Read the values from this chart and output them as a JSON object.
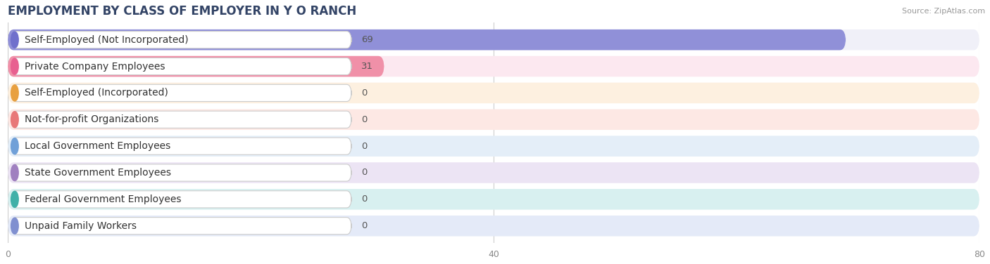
{
  "title": "EMPLOYMENT BY CLASS OF EMPLOYER IN Y O RANCH",
  "source": "Source: ZipAtlas.com",
  "categories": [
    "Self-Employed (Not Incorporated)",
    "Private Company Employees",
    "Self-Employed (Incorporated)",
    "Not-for-profit Organizations",
    "Local Government Employees",
    "State Government Employees",
    "Federal Government Employees",
    "Unpaid Family Workers"
  ],
  "values": [
    69,
    31,
    0,
    0,
    0,
    0,
    0,
    0
  ],
  "bar_colors": [
    "#9090d8",
    "#f090a8",
    "#f0c080",
    "#f09090",
    "#90b8e0",
    "#b898d0",
    "#60c0b8",
    "#98a8e0"
  ],
  "circle_colors": [
    "#7070cc",
    "#e86090",
    "#e8a040",
    "#e87878",
    "#70a0d8",
    "#a080c0",
    "#40b0a8",
    "#8090d0"
  ],
  "label_bg_color": "#ffffff",
  "label_border_color": "#dddddd",
  "row_bg_colors": [
    "#f0f0f8",
    "#fce8f0",
    "#fdf0e0",
    "#fde8e4",
    "#e4eef8",
    "#ece4f4",
    "#d8f0f0",
    "#e4eaf8"
  ],
  "xlim": [
    0,
    80
  ],
  "xticks": [
    0,
    40,
    80
  ],
  "background_color": "#ffffff",
  "bar_bg_color": "#eeeeee",
  "title_fontsize": 12,
  "label_fontsize": 10,
  "value_fontsize": 9.5,
  "tick_fontsize": 9
}
